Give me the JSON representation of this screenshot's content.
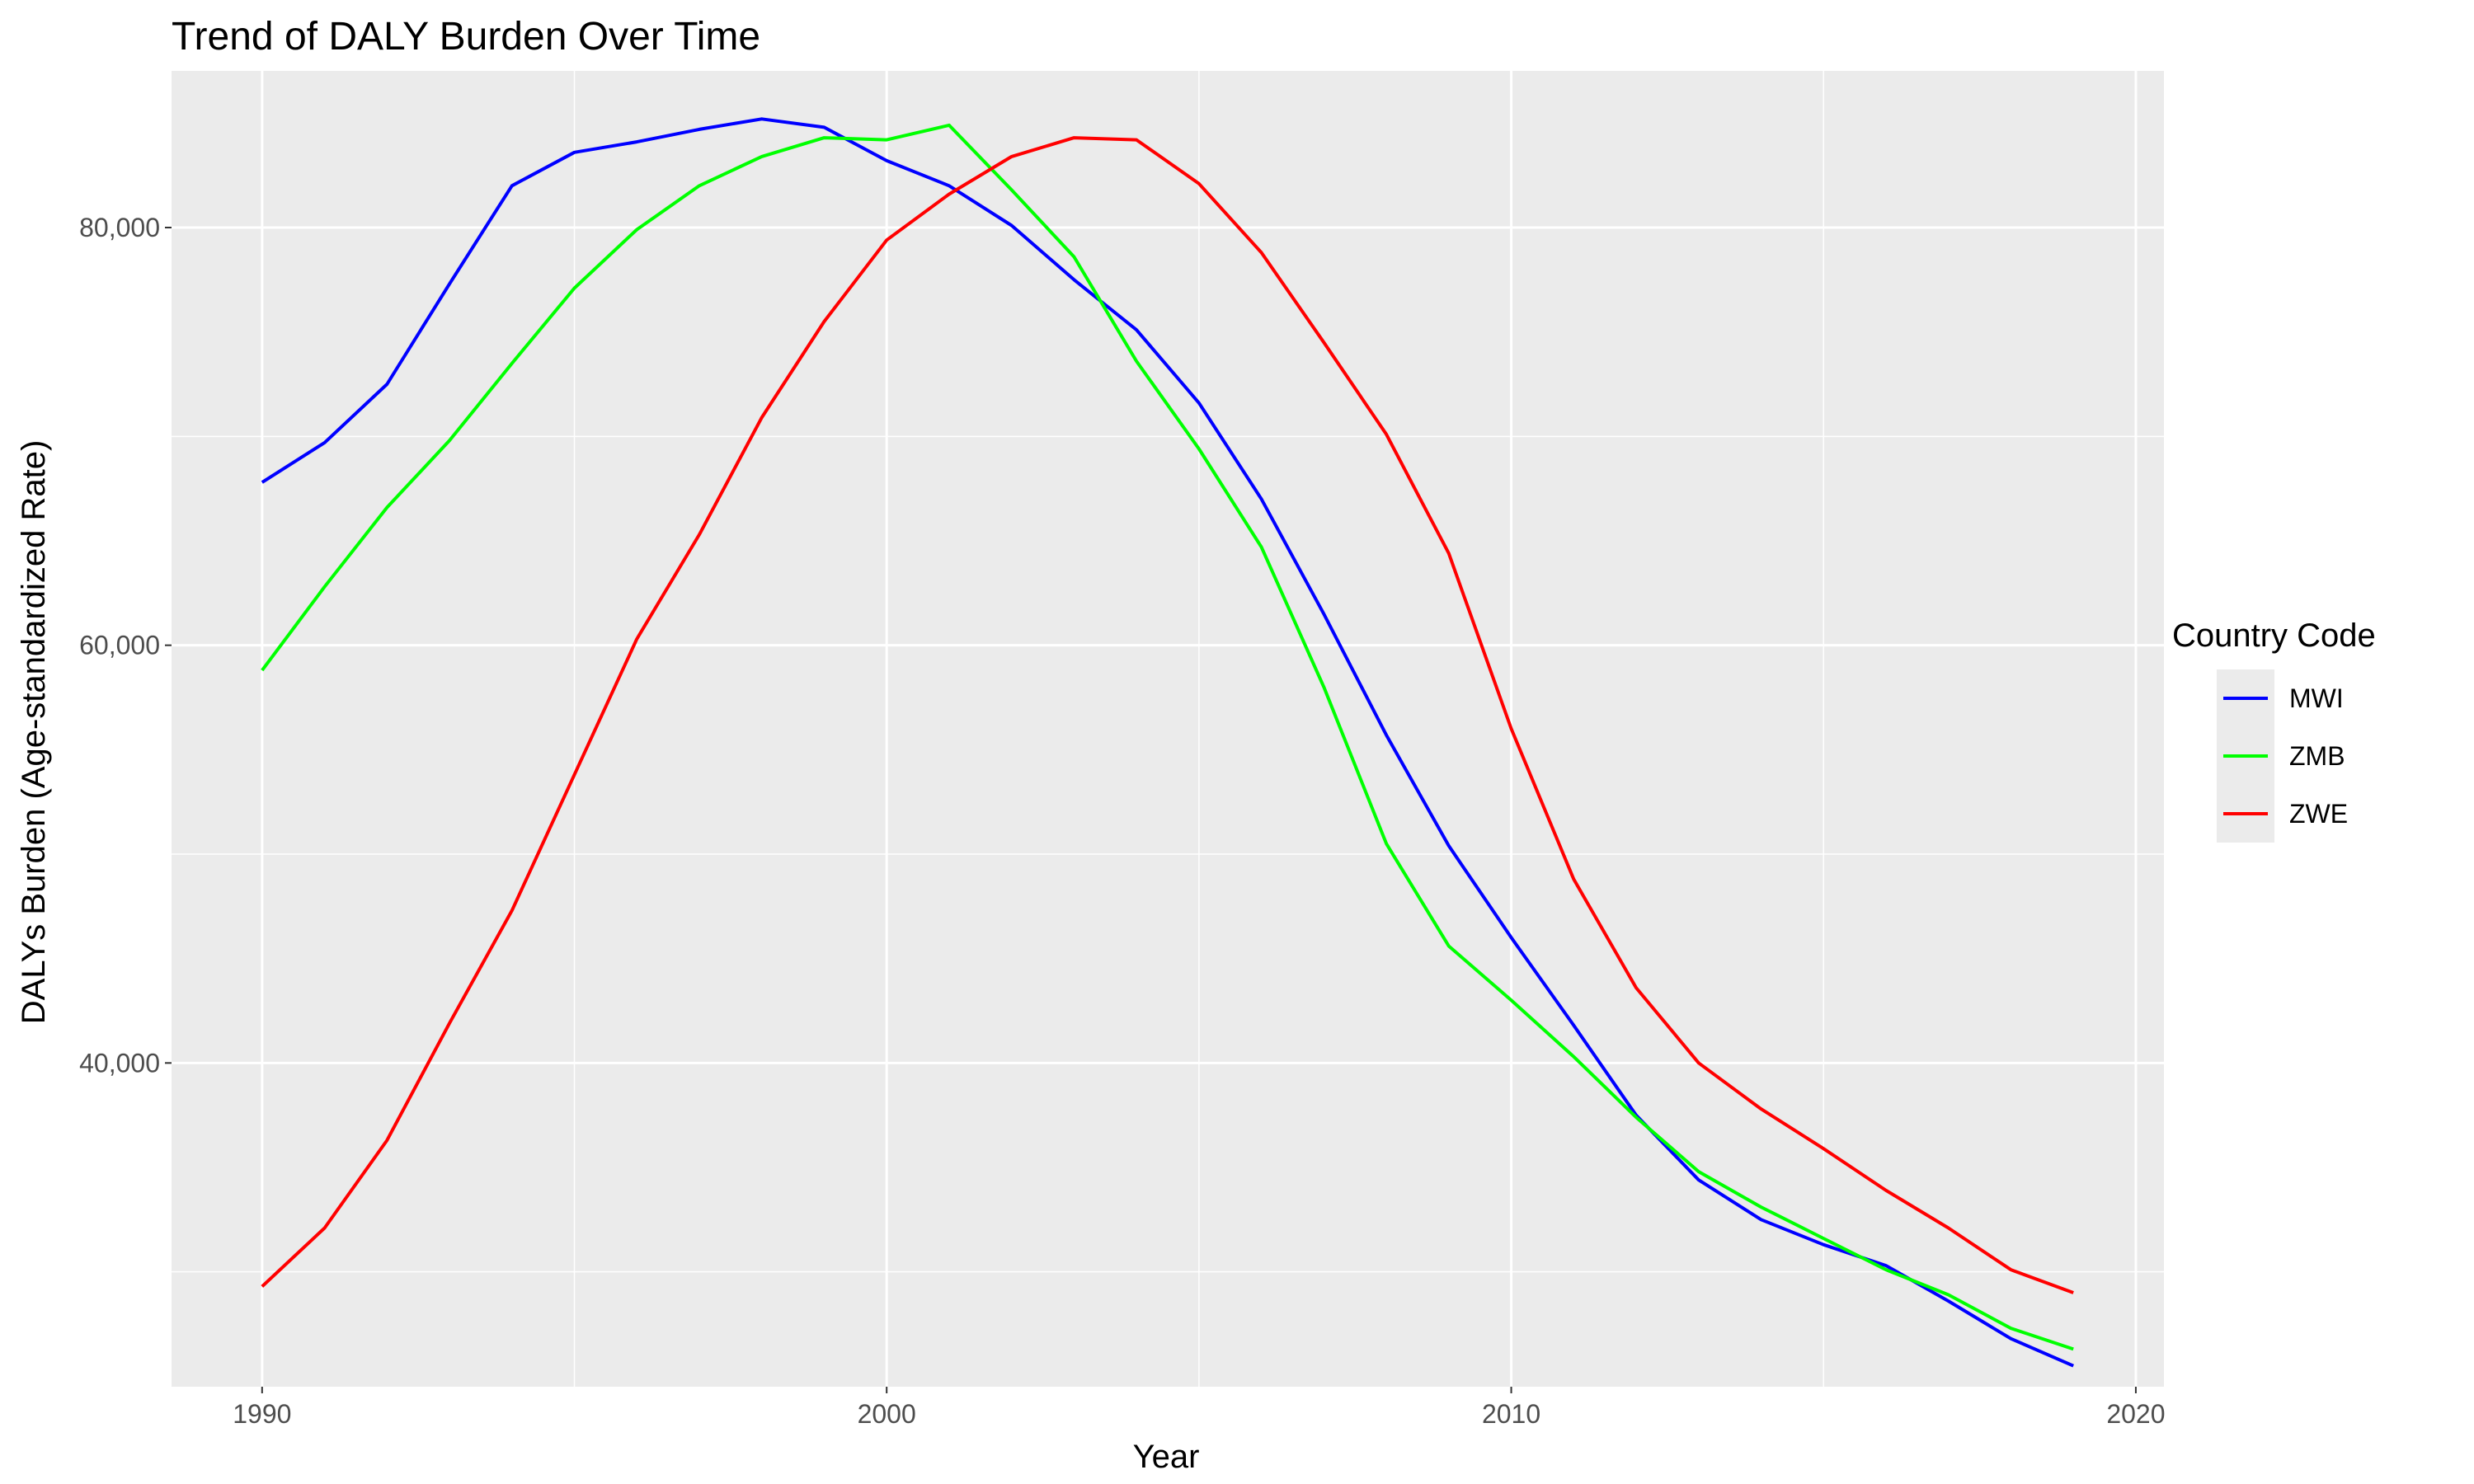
{
  "chart_data": {
    "type": "line",
    "title": "Trend of DALY Burden Over Time",
    "xlabel": "Year",
    "ylabel": "DALYs Burden (Age-standardized Rate)",
    "xlim": [
      1988.55,
      2020.45
    ],
    "ylim": [
      24500,
      87500
    ],
    "x_ticks": [
      1990,
      2000,
      2010,
      2020
    ],
    "x_tick_labels": [
      "1990",
      "2000",
      "2010",
      "2020"
    ],
    "x_minor": [
      1995,
      2005,
      2015
    ],
    "y_ticks": [
      40000,
      60000,
      80000
    ],
    "y_tick_labels": [
      "40,000",
      "60,000",
      "80,000"
    ],
    "y_minor": [
      30000,
      50000,
      70000
    ],
    "grid": true,
    "background": "#ebebeb",
    "legend": {
      "title": "Country Code",
      "position": "right"
    },
    "x": [
      1990,
      1991,
      1992,
      1993,
      1994,
      1995,
      1996,
      1997,
      1998,
      1999,
      2000,
      2001,
      2002,
      2003,
      2004,
      2005,
      2006,
      2007,
      2008,
      2009,
      2010,
      2011,
      2012,
      2013,
      2014,
      2015,
      2016,
      2017,
      2018,
      2019
    ],
    "series": [
      {
        "name": "MWI",
        "color": "#0000ff",
        "values": [
          67800,
          69700,
          72500,
          77300,
          82000,
          83600,
          84100,
          84700,
          85200,
          84800,
          83200,
          82000,
          80100,
          77500,
          75100,
          71600,
          67000,
          61500,
          55700,
          50400,
          46000,
          41800,
          37500,
          34400,
          32500,
          31300,
          30300,
          28600,
          26800,
          25500
        ],
        "linewidth": 4
      },
      {
        "name": "ZMB",
        "color": "#00ff00",
        "values": [
          58800,
          62800,
          66600,
          69800,
          73500,
          77100,
          79900,
          82000,
          83400,
          84300,
          84200,
          84900,
          81800,
          78600,
          73600,
          69400,
          64700,
          58000,
          50500,
          45600,
          43000,
          40300,
          37400,
          34800,
          33100,
          31600,
          30100,
          28900,
          27300,
          26300
        ],
        "linewidth": 4
      },
      {
        "name": "ZWE",
        "color": "#ff0000",
        "values": [
          29300,
          32100,
          36300,
          41900,
          47300,
          53800,
          60300,
          65300,
          70900,
          75500,
          79400,
          81600,
          83400,
          84300,
          84200,
          82100,
          78800,
          74500,
          70100,
          64400,
          56000,
          48800,
          43600,
          40000,
          37800,
          35900,
          33900,
          32100,
          30100,
          29000
        ],
        "linewidth": 4
      }
    ]
  }
}
